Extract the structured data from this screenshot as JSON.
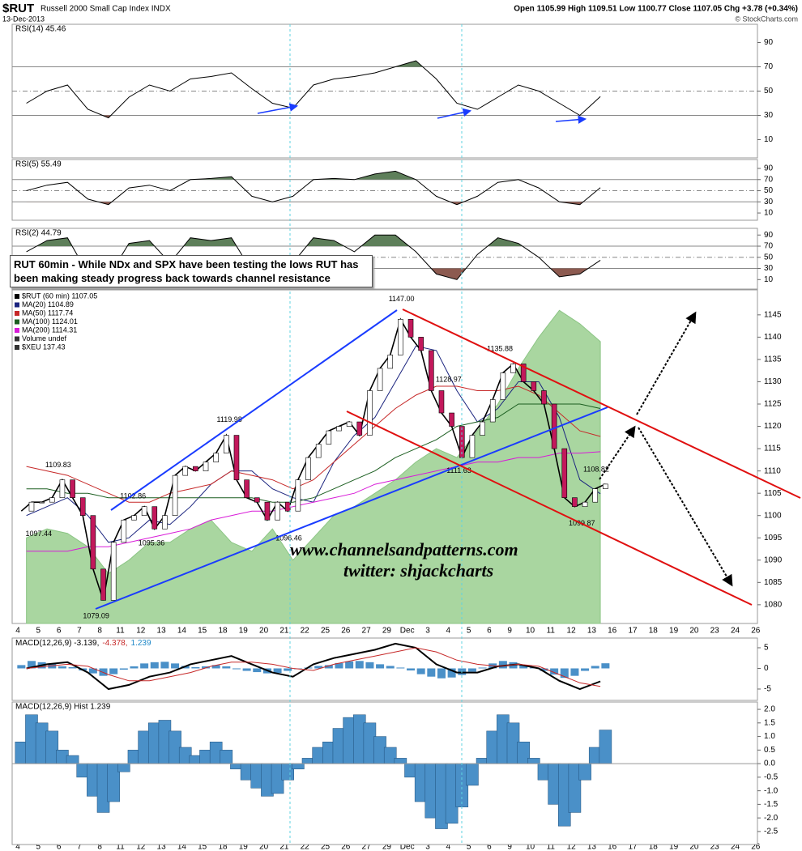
{
  "header": {
    "symbol": "$RUT",
    "name": "Russell 2000 Small Cap Index INDX",
    "date": "13-Dec-2013",
    "quote": "Open 1105.99  High 1109.51  Low 1100.77  Close 1107.05  Chg +3.78 (+0.34%)",
    "credit": "© StockCharts.com"
  },
  "annotation_box": "RUT 60min - While NDx and SPX have been testing the lows RUT has been making steady progress back towards channel resistance",
  "watermark": [
    "www.channelsandpatterns.com",
    "twitter: shjackcharts"
  ],
  "x_axis": {
    "categories": [
      "4",
      "5",
      "6",
      "7",
      "8",
      "11",
      "12",
      "13",
      "14",
      "15",
      "18",
      "19",
      "20",
      "21",
      "22",
      "25",
      "26",
      "27",
      "29",
      "Dec",
      "3",
      "4",
      "5",
      "6",
      "9",
      "10",
      "11",
      "12",
      "13",
      "16",
      "17",
      "18",
      "19",
      "20",
      "23",
      "24",
      "26"
    ]
  },
  "chart_data": [
    {
      "type": "rsi",
      "title": "RSI(14) 45.46",
      "ylim": [
        -5,
        105
      ],
      "yticks": [
        10,
        30,
        50,
        70,
        90
      ],
      "fill_above": 70,
      "fill_below": 30,
      "color": "#000000",
      "fill_colors": [
        "#5e7f5a",
        "#8c5a50"
      ],
      "values": [
        40,
        50,
        55,
        35,
        28,
        45,
        55,
        50,
        60,
        62,
        65,
        52,
        40,
        36,
        55,
        60,
        62,
        65,
        70,
        75,
        60,
        40,
        35,
        45,
        55,
        50,
        40,
        30,
        45.46
      ]
    },
    {
      "type": "rsi",
      "title": "RSI(5) 55.49",
      "ylim": [
        -3,
        106
      ],
      "yticks": [
        10,
        30,
        50,
        70,
        90
      ],
      "fill_above": 70,
      "fill_below": 30,
      "color": "#000000",
      "fill_colors": [
        "#5e7f5a",
        "#8c5a50"
      ],
      "values": [
        50,
        60,
        65,
        35,
        25,
        55,
        60,
        50,
        70,
        72,
        75,
        40,
        30,
        40,
        70,
        72,
        70,
        80,
        85,
        70,
        40,
        25,
        40,
        65,
        70,
        55,
        30,
        25,
        55.49
      ]
    },
    {
      "type": "rsi",
      "title": "RSI(2) 44.79",
      "ylim": [
        -7,
        102
      ],
      "yticks": [
        10,
        30,
        50,
        70,
        90
      ],
      "fill_above": 70,
      "fill_below": 30,
      "color": "#000000",
      "fill_colors": [
        "#5e7f5a",
        "#8c5a50"
      ],
      "values": [
        60,
        80,
        85,
        20,
        15,
        75,
        80,
        40,
        85,
        80,
        85,
        25,
        20,
        40,
        85,
        80,
        60,
        90,
        90,
        60,
        20,
        10,
        55,
        85,
        75,
        50,
        15,
        20,
        44.79
      ]
    },
    {
      "type": "price",
      "ylim": [
        1075.8,
        1150.6
      ],
      "yticks": [
        1080,
        1085,
        1090,
        1095,
        1100,
        1105,
        1110,
        1115,
        1120,
        1125,
        1130,
        1135,
        1140,
        1145
      ],
      "legend_texts": [
        "Volume undef"
      ],
      "area": {
        "name": "$XEU 137.43",
        "color": "#a9d6a0",
        "values": [
          1095,
          1097,
          1096,
          1093,
          1087,
          1090,
          1094,
          1094,
          1097,
          1099,
          1094,
          1092,
          1097,
          1090,
          1095,
          1100,
          1102,
          1105,
          1108,
          1112,
          1115,
          1113,
          1119,
          1125,
          1133,
          1140,
          1146,
          1143,
          1139
        ]
      },
      "price": {
        "name": "$RUT (60 min) 1107.05",
        "color": "#000000",
        "values": [
          1101,
          1103,
          1103,
          1104,
          1108,
          1104,
          1100,
          1088,
          1081,
          1094,
          1099,
          1100,
          1102,
          1097,
          1100,
          1109,
          1111,
          1110,
          1112,
          1114,
          1118,
          1108,
          1104,
          1103,
          1099,
          1103,
          1101,
          1108,
          1113,
          1116,
          1119,
          1120,
          1121,
          1118,
          1128,
          1133,
          1136,
          1144,
          1140,
          1137,
          1128,
          1123,
          1120,
          1113,
          1118,
          1121,
          1126,
          1132,
          1134,
          1130,
          1128,
          1125,
          1115,
          1104,
          1102,
          1103,
          1106,
          1107.05
        ]
      },
      "series": [
        {
          "name": "MA(20) 1104.89",
          "color": "#1a237e",
          "values": [
            1100,
            1102,
            1104,
            1100,
            1094,
            1095,
            1099,
            1098,
            1102,
            1107,
            1110,
            1110,
            1106,
            1104,
            1103,
            1112,
            1118,
            1122,
            1130,
            1138,
            1137,
            1128,
            1121,
            1124,
            1130,
            1130,
            1122,
            1108,
            1104.89
          ]
        },
        {
          "name": "MA(50) 1117.74",
          "color": "#c62828",
          "values": [
            1111,
            1110,
            1109,
            1107,
            1105,
            1103,
            1103,
            1105,
            1106,
            1107,
            1110,
            1109,
            1108,
            1106,
            1108,
            1112,
            1116,
            1120,
            1124,
            1127,
            1129,
            1129,
            1128,
            1128,
            1129,
            1127,
            1123,
            1119,
            1117.74
          ]
        },
        {
          "name": "MA(100) 1124.01",
          "color": "#1b5e20",
          "values": [
            1106,
            1106,
            1105,
            1105,
            1104,
            1104,
            1104,
            1104,
            1104,
            1104,
            1104,
            1104,
            1103,
            1103,
            1104,
            1106,
            1108,
            1110,
            1113,
            1115,
            1117,
            1120,
            1121,
            1122,
            1125,
            1125,
            1125,
            1125,
            1124.01
          ]
        },
        {
          "name": "MA(200) 1114.31",
          "color": "#d81bd8",
          "values": [
            1092,
            1092,
            1092,
            1093,
            1093,
            1094,
            1095,
            1096,
            1097,
            1099,
            1100,
            1101,
            1101,
            1102,
            1103,
            1104,
            1105,
            1107,
            1108,
            1109,
            1110,
            1111,
            1112,
            1112,
            1113,
            1113,
            1114,
            1114,
            1114.31
          ]
        }
      ],
      "annotations": [
        {
          "x": 2.05,
          "value": 1109.83,
          "label": "1109.83"
        },
        {
          "x": 1.1,
          "value": 1097.44,
          "label": "1097.44"
        },
        {
          "x": 3.9,
          "value": 1079.09,
          "label": "1079.09"
        },
        {
          "x": 5.7,
          "value": 1102.86,
          "label": "1102.86"
        },
        {
          "x": 6.6,
          "value": 1095.36,
          "label": "1095.36"
        },
        {
          "x": 10.4,
          "value": 1119.98,
          "label": "1119.98"
        },
        {
          "x": 13.3,
          "value": 1096.46,
          "label": "1096.46"
        },
        {
          "x": 18.8,
          "value": 1147,
          "label": "1147.00"
        },
        {
          "x": 21.1,
          "value": 1128.97,
          "label": "1128.97"
        },
        {
          "x": 21.6,
          "value": 1111.63,
          "label": "1111.63"
        },
        {
          "x": 23.6,
          "value": 1135.88,
          "label": "1135.88"
        },
        {
          "x": 28.3,
          "value": 1108.82,
          "label": "1108.82"
        },
        {
          "x": 27.6,
          "value": 1099.87,
          "label": "1099.87"
        }
      ]
    },
    {
      "type": "macd",
      "title_parts": [
        {
          "text": "MACD(12,26,9) -3.139,",
          "color": "#000000"
        },
        {
          "text": "-4.378,",
          "color": "#c62828"
        },
        {
          "text": "1.239",
          "color": "#1e88c8"
        }
      ],
      "ylim": [
        -7.75,
        7.35
      ],
      "yticks": [
        5,
        0,
        -5
      ],
      "series": [
        {
          "name": "MACD",
          "color": "#000000",
          "values": [
            0,
            1,
            1.5,
            -1,
            -5,
            -4,
            -2,
            -1,
            1,
            2,
            3,
            1,
            -1,
            -2,
            1,
            2.5,
            3.5,
            4.5,
            6,
            5,
            1,
            -1,
            -1,
            0.5,
            1,
            0,
            -3,
            -5,
            -3.139
          ]
        },
        {
          "name": "Signal",
          "color": "#c62828",
          "values": [
            0,
            0.5,
            1,
            0.5,
            -1.5,
            -3,
            -3,
            -2,
            -1,
            0.5,
            1.5,
            1.5,
            1,
            0,
            -0.5,
            1,
            2,
            3,
            4,
            5,
            4,
            2,
            1,
            0.5,
            1,
            0.5,
            -1.5,
            -3.5,
            -4.378
          ]
        }
      ]
    },
    {
      "type": "hist",
      "title": "MACD(12,26,9) Hist 1.239",
      "color": "#4a90c8",
      "ylim": [
        -2.98,
        2.27
      ],
      "yticks": [
        {
          "value": 2,
          "label": "2.0"
        },
        1.5,
        {
          "value": 1,
          "label": "1.0"
        },
        0.5,
        {
          "value": 0,
          "label": "0.0"
        },
        -0.5,
        {
          "value": -1,
          "label": "-1.0"
        },
        -1.5,
        {
          "value": -2,
          "label": "-2.0"
        },
        -2.5
      ],
      "values": [
        0.8,
        1.8,
        1.5,
        1.2,
        0.5,
        0.3,
        -0.5,
        -1.2,
        -1.8,
        -1.4,
        -0.3,
        0.5,
        1.2,
        1.5,
        1.6,
        1.2,
        0.6,
        0.3,
        0.5,
        0.8,
        0.5,
        -0.2,
        -0.6,
        -0.9,
        -1.2,
        -1.1,
        -0.6,
        -0.2,
        0.2,
        0.6,
        0.8,
        1.3,
        1.7,
        1.8,
        1.5,
        1.0,
        0.6,
        0.2,
        -0.5,
        -1.4,
        -2.0,
        -2.4,
        -2.2,
        -1.6,
        -0.8,
        0.2,
        1.2,
        1.8,
        1.5,
        0.8,
        0.2,
        -0.6,
        -1.5,
        -2.3,
        -1.8,
        -0.6,
        0.6,
        1.239
      ]
    }
  ]
}
